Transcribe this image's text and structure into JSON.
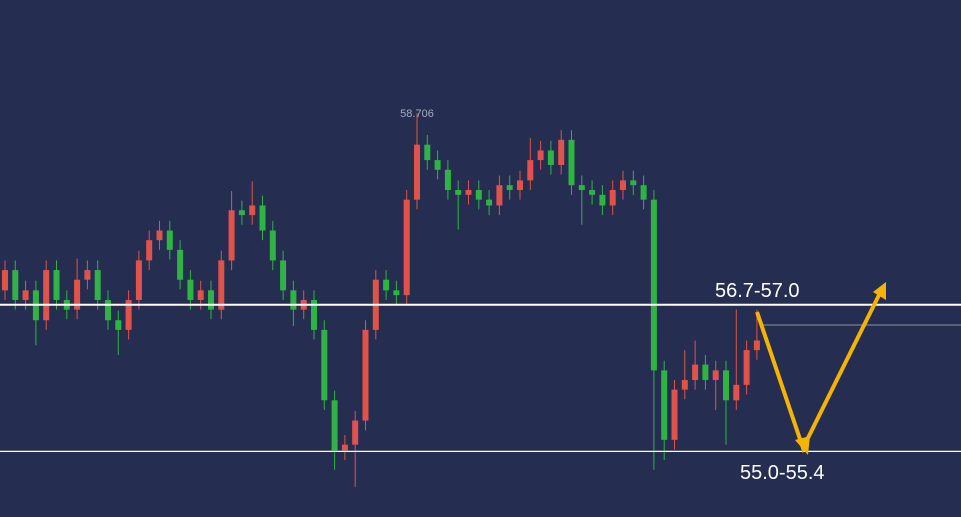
{
  "chart_data": {
    "type": "candlestick",
    "ylim": [
      54.52,
      59.88
    ],
    "up_color": "#e0534a",
    "down_color": "#2fb344",
    "open": [
      56.87,
      57.08,
      56.77,
      56.87,
      56.56,
      57.08,
      56.77,
      56.67,
      56.98,
      57.08,
      56.77,
      56.56,
      56.46,
      56.77,
      57.18,
      57.39,
      57.49,
      57.29,
      56.98,
      56.77,
      56.87,
      56.67,
      57.18,
      57.7,
      57.65,
      57.75,
      57.49,
      57.18,
      56.87,
      56.67,
      56.77,
      56.46,
      55.73,
      55.21,
      55.27,
      55.52,
      56.46,
      56.98,
      56.87,
      56.82,
      57.81,
      58.38,
      58.22,
      58.12,
      57.91,
      57.86,
      57.91,
      57.81,
      57.75,
      57.96,
      57.91,
      58.01,
      58.22,
      58.32,
      58.17,
      58.43,
      57.96,
      57.91,
      57.86,
      57.75,
      57.91,
      58.01,
      57.96,
      57.81,
      56.04,
      55.32,
      55.84,
      55.94,
      56.1,
      55.94,
      56.04,
      55.73,
      55.89,
      56.25
    ],
    "high": [
      57.18,
      57.18,
      56.97,
      56.97,
      57.18,
      57.18,
      56.87,
      57.2,
      57.18,
      57.18,
      56.87,
      56.66,
      56.87,
      57.28,
      57.49,
      57.59,
      57.59,
      57.39,
      57.08,
      56.97,
      56.97,
      57.28,
      57.9,
      57.8,
      58.0,
      57.85,
      57.59,
      57.28,
      56.97,
      56.87,
      56.87,
      56.56,
      55.83,
      55.37,
      55.62,
      56.56,
      57.08,
      57.08,
      56.97,
      57.91,
      58.706,
      58.48,
      58.32,
      58.22,
      58.01,
      58.01,
      58.01,
      57.91,
      58.06,
      58.06,
      58.11,
      58.45,
      58.42,
      58.42,
      58.53,
      58.53,
      58.06,
      58.01,
      57.96,
      58.01,
      58.11,
      58.11,
      58.06,
      57.91,
      56.14,
      55.94,
      56.25,
      56.35,
      56.2,
      56.14,
      56.14,
      56.67,
      56.35,
      56.67
    ],
    "low": [
      56.77,
      56.67,
      56.67,
      56.3,
      56.46,
      56.67,
      56.57,
      56.57,
      56.88,
      56.67,
      56.46,
      56.2,
      56.36,
      56.67,
      57.08,
      57.29,
      57.19,
      56.88,
      56.67,
      56.67,
      56.57,
      56.57,
      57.08,
      57.55,
      57.55,
      57.39,
      57.08,
      56.77,
      56.5,
      56.57,
      56.36,
      55.63,
      55.01,
      55.11,
      54.83,
      55.42,
      56.36,
      56.77,
      56.72,
      56.72,
      57.71,
      58.12,
      58.02,
      57.81,
      57.5,
      57.76,
      57.71,
      57.65,
      57.65,
      57.81,
      57.81,
      57.91,
      58.12,
      58.07,
      58.07,
      57.86,
      57.55,
      57.76,
      57.65,
      57.65,
      57.81,
      57.86,
      57.71,
      55.01,
      55.11,
      55.22,
      55.74,
      55.84,
      55.84,
      55.63,
      55.27,
      55.63,
      55.79,
      56.15
    ],
    "close": [
      57.08,
      56.77,
      56.87,
      56.56,
      57.08,
      56.77,
      56.67,
      56.98,
      57.08,
      56.77,
      56.56,
      56.46,
      56.77,
      57.18,
      57.39,
      57.49,
      57.29,
      56.98,
      56.77,
      56.87,
      56.67,
      57.18,
      57.7,
      57.65,
      57.75,
      57.49,
      57.18,
      56.87,
      56.67,
      56.77,
      56.46,
      55.73,
      55.21,
      55.27,
      55.52,
      56.46,
      56.98,
      56.87,
      56.82,
      57.81,
      58.38,
      58.22,
      58.12,
      57.91,
      57.86,
      57.91,
      57.81,
      57.75,
      57.96,
      57.91,
      58.01,
      58.22,
      58.32,
      58.17,
      58.43,
      57.96,
      57.91,
      57.86,
      57.75,
      57.91,
      58.01,
      57.96,
      57.81,
      56.04,
      55.32,
      55.84,
      55.94,
      56.1,
      55.94,
      56.04,
      55.73,
      55.89,
      56.25,
      56.35
    ],
    "hlines": [
      56.72,
      55.2
    ],
    "faint_line": 56.51,
    "annotations": [
      "56.7-57.0",
      "55.0-55.4"
    ]
  }
}
